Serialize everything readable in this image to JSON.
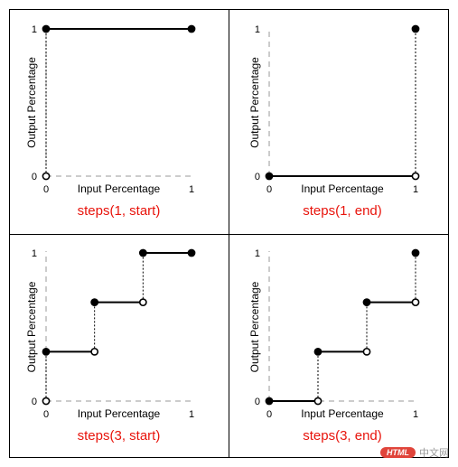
{
  "colors": {
    "border": "#000000",
    "axis_dashed": "#9a9a9a",
    "step_line": "#000000",
    "caption": "#e8140c"
  },
  "chart_data": [
    {
      "type": "line",
      "title": "steps(1, start)",
      "xlabel": "Input Percentage",
      "ylabel": "Output Percentage",
      "xlim": [
        0,
        1
      ],
      "ylim": [
        0,
        1
      ],
      "x_ticks": [
        "0",
        "1"
      ],
      "y_ticks": [
        "0",
        "1"
      ],
      "grid": false,
      "segments": [
        {
          "x": [
            0,
            1
          ],
          "y": [
            1,
            1
          ]
        }
      ],
      "filled_points": [
        {
          "x": 0,
          "y": 1
        },
        {
          "x": 1,
          "y": 1
        }
      ],
      "open_points": [
        {
          "x": 0,
          "y": 0
        }
      ],
      "dotted_jumps": [
        {
          "x": 0,
          "y": [
            0,
            1
          ]
        }
      ]
    },
    {
      "type": "line",
      "title": "steps(1, end)",
      "xlabel": "Input Percentage",
      "ylabel": "Output Percentage",
      "xlim": [
        0,
        1
      ],
      "ylim": [
        0,
        1
      ],
      "x_ticks": [
        "0",
        "1"
      ],
      "y_ticks": [
        "0",
        "1"
      ],
      "grid": false,
      "segments": [
        {
          "x": [
            0,
            1
          ],
          "y": [
            0,
            0
          ]
        }
      ],
      "filled_points": [
        {
          "x": 0,
          "y": 0
        },
        {
          "x": 1,
          "y": 1
        }
      ],
      "open_points": [
        {
          "x": 1,
          "y": 0
        }
      ],
      "dotted_jumps": [
        {
          "x": 1,
          "y": [
            0,
            1
          ]
        }
      ]
    },
    {
      "type": "line",
      "title": "steps(3, start)",
      "xlabel": "Input Percentage",
      "ylabel": "Output Percentage",
      "xlim": [
        0,
        1
      ],
      "ylim": [
        0,
        1
      ],
      "x_ticks": [
        "0",
        "1"
      ],
      "y_ticks": [
        "0",
        "1"
      ],
      "grid": false,
      "segments": [
        {
          "x": [
            0,
            0.3333
          ],
          "y": [
            0.3333,
            0.3333
          ]
        },
        {
          "x": [
            0.3333,
            0.6667
          ],
          "y": [
            0.6667,
            0.6667
          ]
        },
        {
          "x": [
            0.6667,
            1
          ],
          "y": [
            1,
            1
          ]
        }
      ],
      "filled_points": [
        {
          "x": 0,
          "y": 0.3333
        },
        {
          "x": 0.3333,
          "y": 0.6667
        },
        {
          "x": 0.6667,
          "y": 1
        },
        {
          "x": 1,
          "y": 1
        }
      ],
      "open_points": [
        {
          "x": 0,
          "y": 0
        },
        {
          "x": 0.3333,
          "y": 0.3333
        },
        {
          "x": 0.6667,
          "y": 0.6667
        }
      ],
      "dotted_jumps": [
        {
          "x": 0,
          "y": [
            0,
            0.3333
          ]
        },
        {
          "x": 0.3333,
          "y": [
            0.3333,
            0.6667
          ]
        },
        {
          "x": 0.6667,
          "y": [
            0.6667,
            1
          ]
        }
      ]
    },
    {
      "type": "line",
      "title": "steps(3, end)",
      "xlabel": "Input Percentage",
      "ylabel": "Output Percentage",
      "xlim": [
        0,
        1
      ],
      "ylim": [
        0,
        1
      ],
      "x_ticks": [
        "0",
        "1"
      ],
      "y_ticks": [
        "0",
        "1"
      ],
      "grid": false,
      "segments": [
        {
          "x": [
            0,
            0.3333
          ],
          "y": [
            0,
            0
          ]
        },
        {
          "x": [
            0.3333,
            0.6667
          ],
          "y": [
            0.3333,
            0.3333
          ]
        },
        {
          "x": [
            0.6667,
            1
          ],
          "y": [
            0.6667,
            0.6667
          ]
        }
      ],
      "filled_points": [
        {
          "x": 0,
          "y": 0
        },
        {
          "x": 0.3333,
          "y": 0.3333
        },
        {
          "x": 0.6667,
          "y": 0.6667
        },
        {
          "x": 1,
          "y": 1
        }
      ],
      "open_points": [
        {
          "x": 0.3333,
          "y": 0
        },
        {
          "x": 0.6667,
          "y": 0.3333
        },
        {
          "x": 1,
          "y": 0.6667
        }
      ],
      "dotted_jumps": [
        {
          "x": 0.3333,
          "y": [
            0,
            0.3333
          ]
        },
        {
          "x": 0.6667,
          "y": [
            0.3333,
            0.6667
          ]
        },
        {
          "x": 1,
          "y": [
            0.6667,
            1
          ]
        }
      ]
    }
  ],
  "watermark": {
    "badge": "HTML",
    "text": "中文网"
  }
}
